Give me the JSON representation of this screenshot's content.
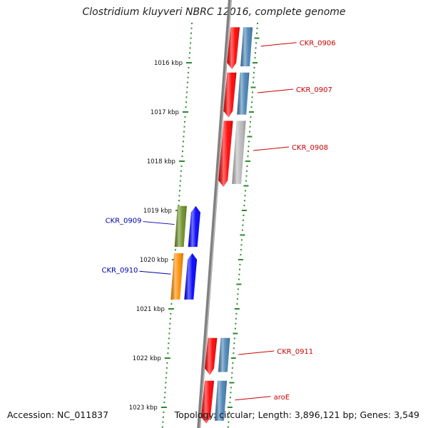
{
  "title": "Clostridium kluyveri NBRC 12016, complete genome",
  "accession": "Accession: NC_011837",
  "topology": "Topology: circular; Length: 3,896,121 bp; Genes: 3,549",
  "colors": {
    "backbone": "#808080",
    "tick": "#2a8a2a",
    "forward_label": "#cc0000",
    "reverse_label": "#0000aa",
    "red": "#ff0000",
    "steelblue": "#4682b4",
    "gray": "#b8b8b8",
    "olive": "#6b8e23",
    "blue": "#0000ff",
    "orange": "#ff8c00",
    "cyan": "#00e5ee"
  },
  "axis": {
    "unit": "kbp",
    "ticks": [
      1016,
      1017,
      1018,
      1019,
      1020,
      1021,
      1022,
      1023
    ]
  },
  "genes": [
    {
      "label": "CKR_0906",
      "strand": "forward",
      "start": 1015.28,
      "end": 1016.13,
      "color_key": "red",
      "partner_color_key": "steelblue"
    },
    {
      "label": "CKR_0907",
      "strand": "forward",
      "start": 1016.2,
      "end": 1017.11,
      "color_key": "red",
      "partner_color_key": "steelblue"
    },
    {
      "label": "CKR_0908",
      "strand": "forward",
      "start": 1017.18,
      "end": 1018.52,
      "color_key": "red",
      "partner_color_key": "gray"
    },
    {
      "label": "CKR_0909",
      "strand": "reverse",
      "start": 1018.91,
      "end": 1019.74,
      "color_key": "olive",
      "partner_color_key": "blue"
    },
    {
      "label": "CKR_0910",
      "strand": "reverse",
      "start": 1019.87,
      "end": 1020.81,
      "color_key": "orange",
      "partner_color_key": "blue"
    },
    {
      "label": "CKR_0911",
      "strand": "forward",
      "start": 1021.59,
      "end": 1022.34,
      "color_key": "red",
      "partner_color_key": "steelblue"
    },
    {
      "label": "aroE",
      "strand": "forward",
      "start": 1022.46,
      "end": 1023.33,
      "color_key": "red",
      "partner_color_key": "steelblue"
    },
    {
      "label": "",
      "strand": "forward",
      "start": 1023.48,
      "end": 1024.3,
      "color_key": "red",
      "partner_color_key": "cyan"
    }
  ]
}
